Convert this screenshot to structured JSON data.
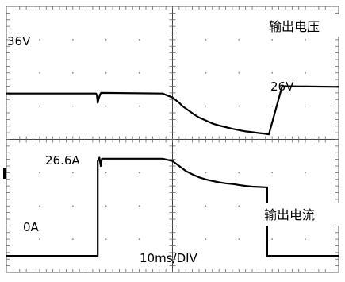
{
  "chart_data": {
    "type": "line",
    "screen": {
      "h_divisions": 10,
      "v_divisions": 8,
      "timebase_label": "10ms/DIV",
      "grid": true,
      "grid_style": "dotted"
    },
    "series": [
      {
        "name": "输出电压",
        "level_label_high": "36V",
        "level_label_low": "26V",
        "color": "#000000",
        "x_div": [
          0,
          5.4,
          5.45,
          5.5,
          5.55,
          5.65,
          5.7,
          9.4,
          10.0,
          10.4,
          10.6,
          10.8,
          11.0,
          11.3,
          11.6,
          12.0,
          12.4,
          12.8,
          13.2,
          13.6,
          14.0,
          14.4,
          14.8,
          15.2,
          15.6,
          15.8,
          16.6,
          20
        ],
        "y_div": [
          5.38,
          5.38,
          5.32,
          5.1,
          5.22,
          5.36,
          5.4,
          5.38,
          5.26,
          5.1,
          5.0,
          4.93,
          4.86,
          4.75,
          4.66,
          4.57,
          4.48,
          4.42,
          4.37,
          4.32,
          4.28,
          4.24,
          4.22,
          4.19,
          4.17,
          4.15,
          5.6,
          5.58
        ]
      },
      {
        "name": "输出电流",
        "level_label_high": "26.6A",
        "level_label_low": "0A",
        "color": "#000000",
        "x_div": [
          0,
          5.5,
          5.5,
          5.6,
          5.68,
          5.75,
          9.4,
          10.0,
          10.4,
          10.8,
          11.2,
          11.6,
          12.0,
          12.4,
          12.8,
          13.2,
          13.6,
          14.0,
          14.4,
          14.8,
          15.2,
          15.6,
          15.7,
          15.7,
          20
        ],
        "y_div": [
          0.5,
          0.5,
          3.35,
          3.45,
          3.2,
          3.42,
          3.42,
          3.35,
          3.2,
          3.05,
          2.95,
          2.86,
          2.8,
          2.75,
          2.71,
          2.68,
          2.66,
          2.63,
          2.6,
          2.58,
          2.57,
          2.56,
          2.56,
          0.5,
          0.5
        ]
      }
    ]
  }
}
